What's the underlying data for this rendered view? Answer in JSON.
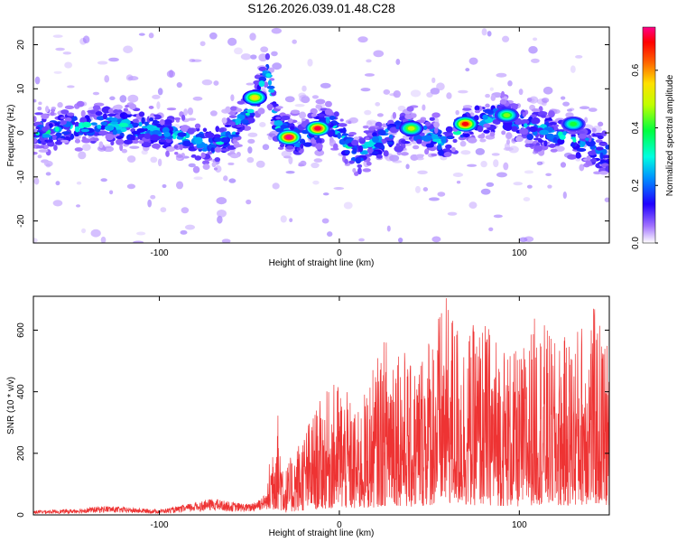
{
  "title": "S126.2026.039.01.48.C28",
  "chart_data": [
    {
      "type": "heatmap",
      "xlabel": "Height of straight line (km)",
      "ylabel": "Frequency (Hz)",
      "xlim": [
        -170,
        150
      ],
      "ylim": [
        -25,
        24
      ],
      "xticks": [
        -100,
        0,
        100
      ],
      "yticks": [
        -20,
        -10,
        0,
        10,
        20
      ],
      "grid": false,
      "colorbar": {
        "label": "Normalized spectral amplitude",
        "range": [
          0,
          0.75
        ],
        "ticks": [
          0.0,
          0.2,
          0.4,
          0.6
        ],
        "tick_labels": [
          "0.0",
          "0.2",
          "0.4",
          "0.6"
        ]
      },
      "ridge": {
        "description": "frequency of main energy ridge vs height",
        "x": [
          -170,
          -150,
          -130,
          -110,
          -95,
          -80,
          -70,
          -60,
          -50,
          -45,
          -40,
          -35,
          -30,
          -25,
          -20,
          -15,
          -10,
          -5,
          0,
          5,
          10,
          20,
          30,
          40,
          50,
          60,
          70,
          80,
          90,
          100,
          110,
          120,
          130,
          140,
          150
        ],
        "y": [
          0,
          1,
          2,
          1,
          0,
          -2,
          -3,
          0,
          5,
          9,
          14,
          2,
          0,
          -1,
          -2,
          0,
          1,
          2,
          0,
          -3,
          -5,
          -2,
          0,
          1,
          0,
          -3,
          2,
          3,
          4,
          2,
          1,
          0,
          -2,
          -3,
          -5
        ]
      },
      "hotspots": [
        {
          "x": -28,
          "y": -1,
          "amplitude": 0.75
        },
        {
          "x": -12,
          "y": 1,
          "amplitude": 0.72
        },
        {
          "x": 70,
          "y": 2,
          "amplitude": 0.7
        },
        {
          "x": -47,
          "y": 8,
          "amplitude": 0.55
        },
        {
          "x": 40,
          "y": 1,
          "amplitude": 0.5
        },
        {
          "x": 93,
          "y": 4,
          "amplitude": 0.45
        },
        {
          "x": 130,
          "y": 2,
          "amplitude": 0.4
        }
      ]
    },
    {
      "type": "line",
      "xlabel": "Height of straight line (km)",
      "ylabel": "SNR (10 * v/v)",
      "xlim": [
        -170,
        150
      ],
      "ylim": [
        0,
        710
      ],
      "xticks": [
        -100,
        0,
        100
      ],
      "yticks": [
        0,
        200,
        400,
        600
      ],
      "color": "#ee3333",
      "grid": false,
      "series": [
        {
          "name": "SNR",
          "envelope_x": [
            -170,
            -150,
            -130,
            -110,
            -100,
            -90,
            -80,
            -70,
            -60,
            -50,
            -40,
            -35,
            -30,
            -20,
            -10,
            0,
            10,
            20,
            30,
            40,
            50,
            60,
            70,
            80,
            90,
            100,
            110,
            120,
            130,
            140,
            150
          ],
          "envelope_max": [
            25,
            30,
            50,
            35,
            30,
            45,
            70,
            90,
            70,
            60,
            120,
            380,
            150,
            280,
            380,
            450,
            330,
            500,
            650,
            480,
            620,
            710,
            600,
            640,
            580,
            520,
            670,
            560,
            600,
            700,
            560
          ]
        }
      ]
    }
  ]
}
